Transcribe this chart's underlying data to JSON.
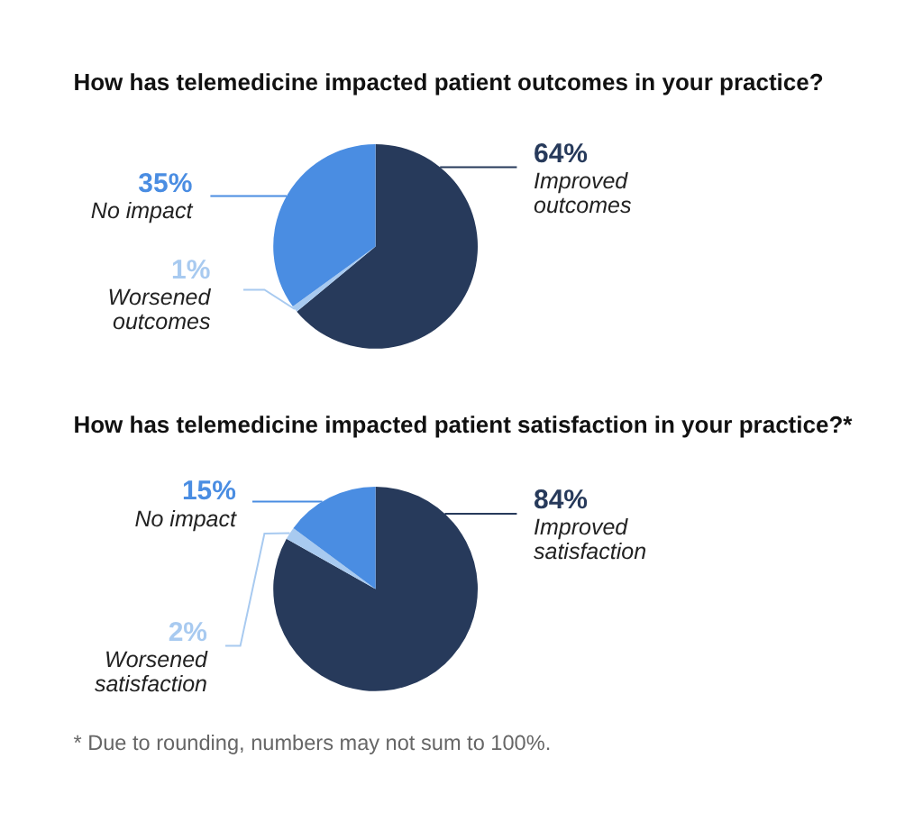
{
  "chart_data": [
    {
      "type": "pie",
      "title": "How has telemedicine impacted patient outcomes in your practice?",
      "categories": [
        "Improved outcomes",
        "Worsened outcomes",
        "No impact"
      ],
      "values": [
        64,
        1,
        35
      ],
      "value_labels": [
        "64%",
        "1%",
        "35%"
      ],
      "colors": [
        "#273a5b",
        "#a8caf0",
        "#4a8de2"
      ]
    },
    {
      "type": "pie",
      "title": "How has telemedicine impacted patient satisfaction in your practice?*",
      "categories": [
        "Improved satisfaction",
        "Worsened satisfaction",
        "No impact"
      ],
      "values": [
        84,
        2,
        15
      ],
      "value_labels": [
        "84%",
        "2%",
        "15%"
      ],
      "colors": [
        "#273a5b",
        "#a8caf0",
        "#4a8de2"
      ],
      "annotations": [
        "* Due to rounding, numbers may not sum to 100%."
      ]
    }
  ]
}
